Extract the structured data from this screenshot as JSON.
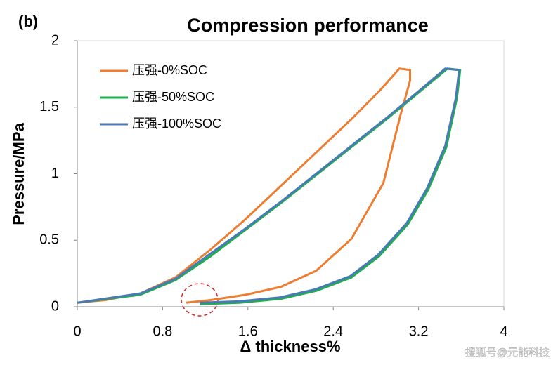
{
  "chart_data": {
    "type": "line",
    "title": "Compression performance",
    "panel_label": "(b)",
    "x_label": "Δ thickness%",
    "y_label": "Pressure/MPa",
    "watermark": "搜狐号@元能科技",
    "xlim": [
      0,
      4
    ],
    "ylim": [
      0,
      2
    ],
    "xticks": [
      0,
      0.8,
      1.6,
      2.4,
      3.2,
      4
    ],
    "yticks": [
      0,
      0.5,
      1,
      1.5,
      2
    ],
    "legend": "upper-left",
    "series": [
      {
        "name": "压强-0%SOC",
        "color": "#ed7d31",
        "x": [
          0,
          0.26,
          0.59,
          0.92,
          1.25,
          1.58,
          1.91,
          2.24,
          2.57,
          2.83,
          3.02,
          3.12,
          3.12,
          3.03,
          2.87,
          2.57,
          2.24,
          1.91,
          1.58,
          1.25,
          1.02
        ],
        "values": [
          0.03,
          0.05,
          0.1,
          0.22,
          0.43,
          0.66,
          0.91,
          1.16,
          1.41,
          1.62,
          1.79,
          1.78,
          1.7,
          1.44,
          0.93,
          0.51,
          0.27,
          0.15,
          0.09,
          0.05,
          0.03
        ]
      },
      {
        "name": "压强-50%SOC",
        "color": "#1fae4d",
        "x": [
          0,
          0.59,
          0.92,
          1.25,
          1.58,
          1.91,
          2.24,
          2.57,
          2.9,
          3.23,
          3.47,
          3.59,
          3.56,
          3.46,
          3.29,
          3.1,
          2.83,
          2.57,
          2.24,
          1.91,
          1.52,
          1.15
        ],
        "values": [
          0.03,
          0.09,
          0.2,
          0.38,
          0.58,
          0.78,
          0.99,
          1.2,
          1.41,
          1.63,
          1.79,
          1.78,
          1.57,
          1.2,
          0.88,
          0.62,
          0.38,
          0.22,
          0.12,
          0.06,
          0.03,
          0.02
        ]
      },
      {
        "name": "压强-100%SOC",
        "color": "#4a7ab5",
        "x": [
          0,
          0.59,
          0.92,
          1.25,
          1.58,
          1.91,
          2.24,
          2.57,
          2.9,
          3.23,
          3.45,
          3.58,
          3.55,
          3.45,
          3.28,
          3.09,
          2.82,
          2.56,
          2.23,
          1.9,
          1.51,
          1.15
        ],
        "values": [
          0.03,
          0.1,
          0.21,
          0.4,
          0.59,
          0.79,
          1.0,
          1.21,
          1.42,
          1.64,
          1.79,
          1.78,
          1.57,
          1.21,
          0.89,
          0.63,
          0.39,
          0.23,
          0.13,
          0.07,
          0.04,
          0.03
        ]
      }
    ]
  }
}
